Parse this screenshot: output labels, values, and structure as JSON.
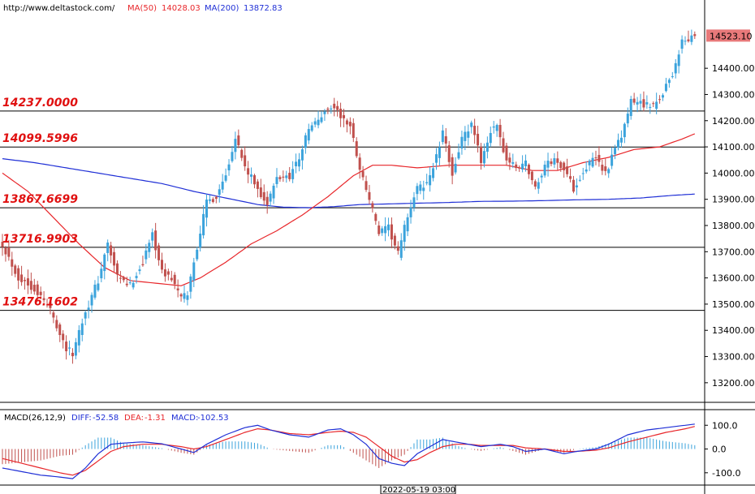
{
  "header": {
    "url": "http://www.deltastock.com/",
    "ma50_label": "MA(50)",
    "ma50_value": "14028.03",
    "ma200_label": "MA(200)",
    "ma200_value": "13872.83"
  },
  "macd_header": {
    "name": "MACD(26,12,9)",
    "diff_label": "DIFF:",
    "diff_value": "-52.58",
    "dea_label": "DEA:",
    "dea_value": "-1.31",
    "macd_label": "MACD:",
    "macd_value": "-102.53"
  },
  "price_tag": "14523.10",
  "crosshair_time": "2022-05-19 03:00",
  "colors": {
    "bull": "#3ba3dc",
    "bear": "#c0504d",
    "ma50": "#e8262a",
    "ma200": "#1f2fd6",
    "level_text": "#e01010",
    "macd_diff": "#1f2fd6",
    "macd_dea": "#e8262a"
  },
  "chart_data": [
    {
      "type": "candlestick",
      "ylim": [
        13150,
        14580
      ],
      "y_ticks": [
        "14400.00",
        "14300.00",
        "14200.00",
        "14100.00",
        "14000.00",
        "13900.00",
        "13800.00",
        "13700.00",
        "13600.00",
        "13500.00",
        "13400.00",
        "13300.00",
        "13200.00"
      ],
      "last_price": 14523.1,
      "levels": [
        {
          "value": 14237.0,
          "label": "14237.0000"
        },
        {
          "value": 14099.5996,
          "label": "14099.5996"
        },
        {
          "value": 13867.6699,
          "label": "13867.6699"
        },
        {
          "value": 13716.9903,
          "label": "13716.9903"
        },
        {
          "value": 13476.1602,
          "label": "13476.1602"
        }
      ],
      "close_waypoints": [
        [
          0,
          13730
        ],
        [
          5,
          13600
        ],
        [
          10,
          13560
        ],
        [
          15,
          13480
        ],
        [
          20,
          13330
        ],
        [
          22,
          13310
        ],
        [
          25,
          13440
        ],
        [
          30,
          13590
        ],
        [
          33,
          13730
        ],
        [
          36,
          13600
        ],
        [
          40,
          13570
        ],
        [
          44,
          13660
        ],
        [
          47,
          13770
        ],
        [
          50,
          13620
        ],
        [
          53,
          13600
        ],
        [
          56,
          13520
        ],
        [
          58,
          13540
        ],
        [
          61,
          13720
        ],
        [
          64,
          13890
        ],
        [
          67,
          13910
        ],
        [
          70,
          14000
        ],
        [
          73,
          14140
        ],
        [
          76,
          14020
        ],
        [
          80,
          13940
        ],
        [
          83,
          13880
        ],
        [
          86,
          13980
        ],
        [
          90,
          13990
        ],
        [
          93,
          14060
        ],
        [
          96,
          14170
        ],
        [
          99,
          14200
        ],
        [
          102,
          14250
        ],
        [
          104,
          14250
        ],
        [
          107,
          14200
        ],
        [
          109,
          14180
        ],
        [
          112,
          14020
        ],
        [
          115,
          13900
        ],
        [
          118,
          13770
        ],
        [
          121,
          13790
        ],
        [
          124,
          13690
        ],
        [
          127,
          13840
        ],
        [
          130,
          13940
        ],
        [
          133,
          13960
        ],
        [
          136,
          14060
        ],
        [
          138,
          14150
        ],
        [
          141,
          14000
        ],
        [
          144,
          14130
        ],
        [
          147,
          14180
        ],
        [
          150,
          14050
        ],
        [
          153,
          14160
        ],
        [
          155,
          14170
        ],
        [
          158,
          14050
        ],
        [
          161,
          14020
        ],
        [
          164,
          14040
        ],
        [
          167,
          13940
        ],
        [
          170,
          14030
        ],
        [
          173,
          14050
        ],
        [
          176,
          14020
        ],
        [
          179,
          13940
        ],
        [
          182,
          14010
        ],
        [
          186,
          14060
        ],
        [
          189,
          14000
        ],
        [
          191,
          14060
        ],
        [
          194,
          14140
        ],
        [
          197,
          14270
        ],
        [
          200,
          14270
        ],
        [
          204,
          14250
        ],
        [
          207,
          14310
        ],
        [
          210,
          14380
        ],
        [
          213,
          14500
        ],
        [
          215,
          14510
        ],
        [
          217,
          14523.1
        ]
      ],
      "ma50_waypoints": [
        [
          0,
          14000
        ],
        [
          8,
          13930
        ],
        [
          16,
          13830
        ],
        [
          24,
          13730
        ],
        [
          32,
          13640
        ],
        [
          40,
          13590
        ],
        [
          48,
          13580
        ],
        [
          56,
          13570
        ],
        [
          62,
          13600
        ],
        [
          70,
          13660
        ],
        [
          78,
          13730
        ],
        [
          86,
          13780
        ],
        [
          94,
          13840
        ],
        [
          102,
          13910
        ],
        [
          110,
          13990
        ],
        [
          116,
          14030
        ],
        [
          122,
          14030
        ],
        [
          130,
          14020
        ],
        [
          140,
          14030
        ],
        [
          150,
          14030
        ],
        [
          158,
          14030
        ],
        [
          166,
          14010
        ],
        [
          174,
          14010
        ],
        [
          182,
          14040
        ],
        [
          190,
          14060
        ],
        [
          198,
          14090
        ],
        [
          206,
          14100
        ],
        [
          213,
          14130
        ],
        [
          217,
          14150
        ]
      ],
      "ma200_waypoints": [
        [
          0,
          14055
        ],
        [
          10,
          14040
        ],
        [
          20,
          14020
        ],
        [
          30,
          14000
        ],
        [
          40,
          13980
        ],
        [
          50,
          13960
        ],
        [
          60,
          13930
        ],
        [
          70,
          13905
        ],
        [
          80,
          13880
        ],
        [
          88,
          13870
        ],
        [
          96,
          13868
        ],
        [
          104,
          13872
        ],
        [
          112,
          13880
        ],
        [
          120,
          13882
        ],
        [
          130,
          13885
        ],
        [
          140,
          13888
        ],
        [
          150,
          13892
        ],
        [
          160,
          13893
        ],
        [
          170,
          13895
        ],
        [
          180,
          13898
        ],
        [
          190,
          13900
        ],
        [
          200,
          13905
        ],
        [
          210,
          13915
        ],
        [
          217,
          13920
        ]
      ]
    },
    {
      "type": "macd",
      "ylim": [
        -145,
        135
      ],
      "y_ticks": [
        "100.0",
        "0.0",
        "-100.0"
      ],
      "diff_waypoints": [
        [
          0,
          -80
        ],
        [
          6,
          -95
        ],
        [
          12,
          -110
        ],
        [
          18,
          -118
        ],
        [
          22,
          -125
        ],
        [
          26,
          -80
        ],
        [
          30,
          -20
        ],
        [
          34,
          20
        ],
        [
          38,
          25
        ],
        [
          44,
          30
        ],
        [
          50,
          22
        ],
        [
          56,
          0
        ],
        [
          60,
          -15
        ],
        [
          64,
          20
        ],
        [
          70,
          60
        ],
        [
          76,
          90
        ],
        [
          80,
          100
        ],
        [
          84,
          80
        ],
        [
          90,
          60
        ],
        [
          96,
          50
        ],
        [
          102,
          80
        ],
        [
          106,
          85
        ],
        [
          110,
          60
        ],
        [
          114,
          20
        ],
        [
          118,
          -40
        ],
        [
          122,
          -60
        ],
        [
          126,
          -70
        ],
        [
          130,
          -20
        ],
        [
          134,
          10
        ],
        [
          138,
          40
        ],
        [
          142,
          30
        ],
        [
          146,
          20
        ],
        [
          150,
          10
        ],
        [
          156,
          20
        ],
        [
          160,
          10
        ],
        [
          164,
          -10
        ],
        [
          170,
          0
        ],
        [
          176,
          -20
        ],
        [
          180,
          -10
        ],
        [
          186,
          0
        ],
        [
          190,
          20
        ],
        [
          196,
          60
        ],
        [
          202,
          80
        ],
        [
          208,
          90
        ],
        [
          214,
          100
        ],
        [
          217,
          105
        ]
      ],
      "dea_waypoints": [
        [
          0,
          -40
        ],
        [
          6,
          -60
        ],
        [
          12,
          -80
        ],
        [
          18,
          -100
        ],
        [
          22,
          -110
        ],
        [
          26,
          -90
        ],
        [
          30,
          -50
        ],
        [
          34,
          -10
        ],
        [
          38,
          10
        ],
        [
          44,
          20
        ],
        [
          50,
          20
        ],
        [
          56,
          10
        ],
        [
          60,
          0
        ],
        [
          64,
          10
        ],
        [
          70,
          40
        ],
        [
          76,
          70
        ],
        [
          80,
          85
        ],
        [
          84,
          80
        ],
        [
          90,
          65
        ],
        [
          96,
          60
        ],
        [
          102,
          70
        ],
        [
          106,
          75
        ],
        [
          110,
          70
        ],
        [
          114,
          50
        ],
        [
          118,
          10
        ],
        [
          122,
          -30
        ],
        [
          126,
          -55
        ],
        [
          130,
          -45
        ],
        [
          134,
          -15
        ],
        [
          138,
          10
        ],
        [
          142,
          20
        ],
        [
          146,
          20
        ],
        [
          150,
          15
        ],
        [
          156,
          15
        ],
        [
          160,
          15
        ],
        [
          164,
          5
        ],
        [
          170,
          0
        ],
        [
          176,
          -10
        ],
        [
          180,
          -10
        ],
        [
          186,
          -5
        ],
        [
          190,
          5
        ],
        [
          196,
          30
        ],
        [
          202,
          50
        ],
        [
          208,
          70
        ],
        [
          214,
          85
        ],
        [
          217,
          95
        ]
      ]
    }
  ]
}
